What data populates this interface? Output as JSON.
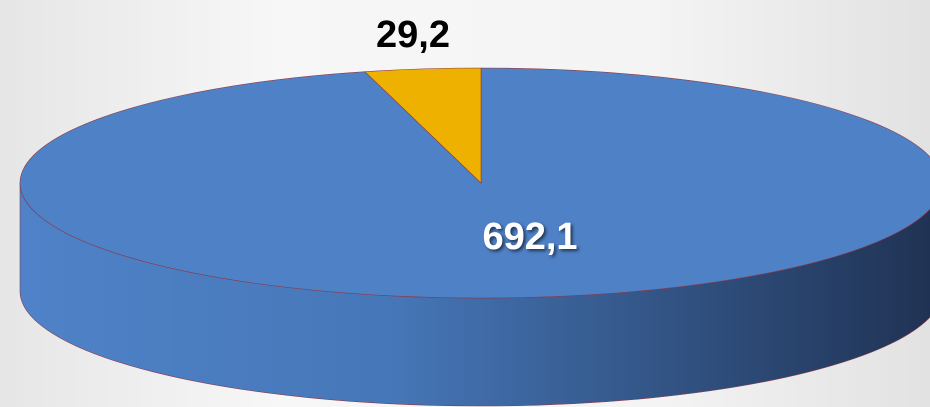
{
  "chart_data": {
    "type": "pie",
    "values": [
      692.1,
      29.2
    ],
    "value_labels": [
      "692,1",
      "29,2"
    ],
    "colors": [
      "#4f81c7",
      "#efb100"
    ]
  }
}
